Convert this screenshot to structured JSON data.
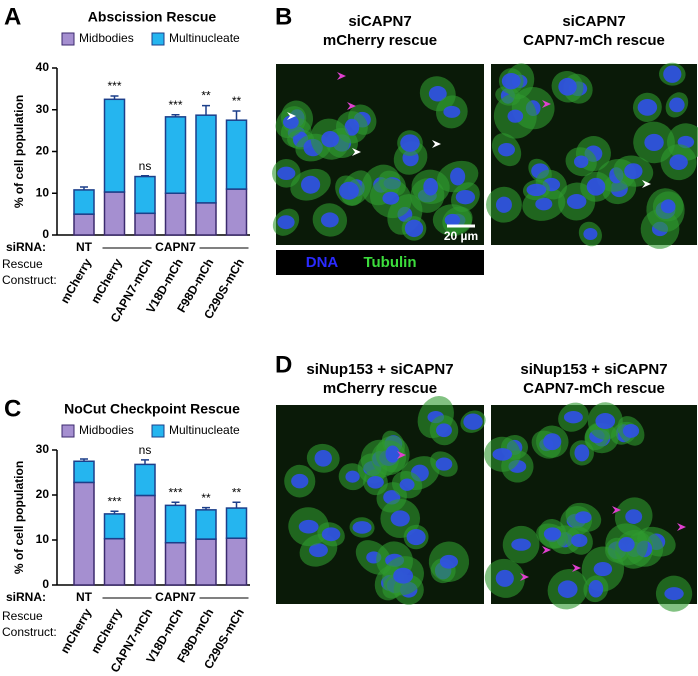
{
  "chart_data": [
    {
      "type": "stacked-bar",
      "panel": "A",
      "title": "Abscission Rescue",
      "ylabel": "% of cell population",
      "categories": [
        "mCherry",
        "mCherry",
        "CAPN7-mCh",
        "V18D-mCh",
        "F98D-mCh",
        "C290S-mCh"
      ],
      "series": [
        {
          "name": "Midbodies",
          "color": "#a58fd0",
          "edge": "#3b2a6e",
          "values": [
            5,
            10.3,
            5.2,
            10,
            7.7,
            11
          ],
          "errors": [
            0.8,
            0.8,
            1,
            1.3,
            2,
            1.5
          ]
        },
        {
          "name": "Multinucleate",
          "color": "#25b5ef",
          "edge": "#1c3f8a",
          "values": [
            5.8,
            22.2,
            8.8,
            18.3,
            21,
            16.5
          ],
          "errors": [
            0.7,
            0.8,
            0.2,
            0.5,
            2.3,
            2.2
          ]
        }
      ],
      "annotations": [
        null,
        "***",
        "ns",
        "***",
        "**",
        "**"
      ],
      "ylim": [
        0,
        40
      ],
      "yticks": [
        0,
        10,
        20,
        30,
        40
      ],
      "group_row_label": "siRNA:",
      "groups": [
        "NT",
        "CAPN7"
      ],
      "row_label": [
        "Rescue",
        "Construct:"
      ]
    },
    {
      "type": "stacked-bar",
      "panel": "C",
      "title": "NoCut Checkpoint Rescue",
      "ylabel": "% of cell population",
      "categories": [
        "mCherry",
        "mCherry",
        "CAPN7-mCh",
        "V18D-mCh",
        "F98D-mCh",
        "C290S-mCh"
      ],
      "series": [
        {
          "name": "Midbodies",
          "color": "#a58fd0",
          "edge": "#3b2a6e",
          "values": [
            22.8,
            10.3,
            19.9,
            9.4,
            10.2,
            10.4
          ],
          "errors": [
            0.8,
            0.6,
            0.3,
            0.7,
            0.5,
            0.6
          ]
        },
        {
          "name": "Multinucleate",
          "color": "#25b5ef",
          "edge": "#1c3f8a",
          "values": [
            4.7,
            5.5,
            6.9,
            8.3,
            6.5,
            6.7
          ],
          "errors": [
            0.5,
            0.6,
            1,
            0.7,
            0.5,
            1.3
          ]
        }
      ],
      "annotations": [
        null,
        "***",
        "ns",
        "***",
        "**",
        "**"
      ],
      "ylim": [
        0,
        30
      ],
      "yticks": [
        0,
        10,
        20,
        30
      ],
      "group_row_label": "siRNA:",
      "groups": [
        "NT",
        "CAPN7"
      ],
      "row_label": [
        "Rescue",
        "Construct:"
      ]
    }
  ],
  "panels": {
    "B": {
      "label": "B",
      "images": [
        [
          "siCAPN7",
          "mCherry rescue"
        ],
        [
          "siCAPN7",
          "CAPN7-mCh rescue"
        ]
      ],
      "scale_bar": "20 µm",
      "channels": [
        "DNA",
        "Tubulin"
      ]
    },
    "D": {
      "label": "D",
      "images": [
        [
          "siNup153 + siCAPN7",
          "mCherry rescue"
        ],
        [
          "siNup153 + siCAPN7",
          "CAPN7-mCh rescue"
        ]
      ]
    }
  }
}
